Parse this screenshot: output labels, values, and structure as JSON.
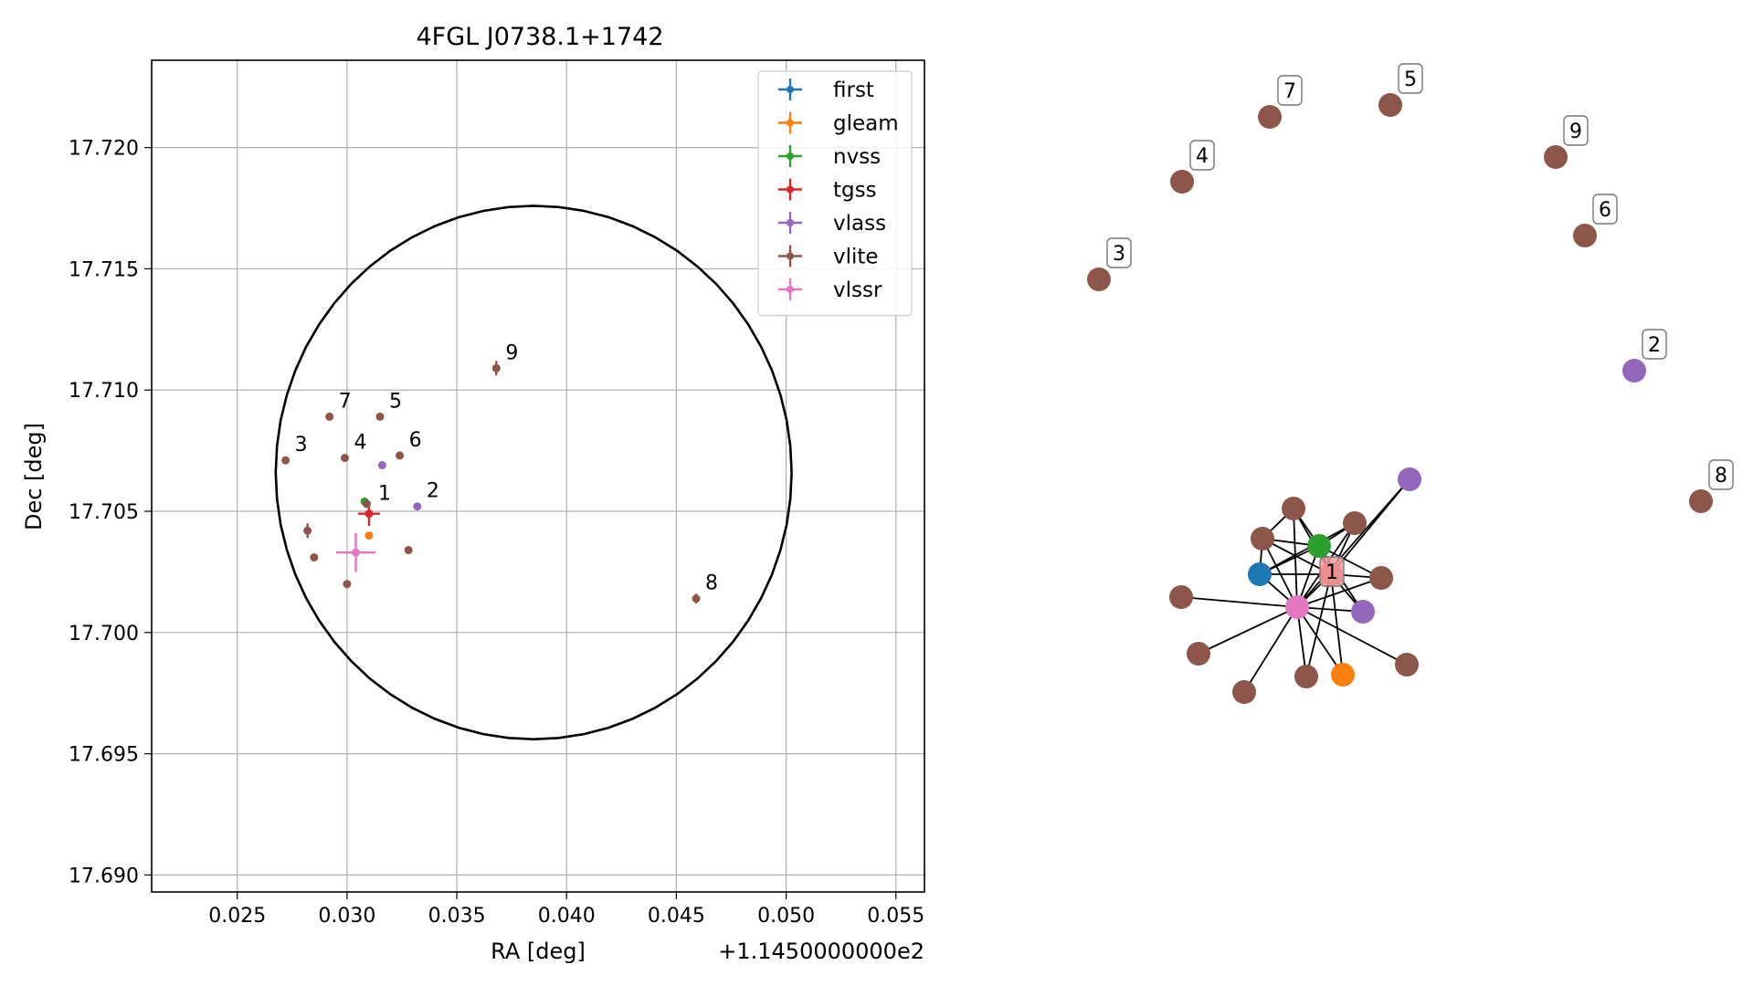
{
  "chart_data": [
    {
      "type": "scatter",
      "title": "4FGL J0738.1+1742",
      "xlabel": "RA [deg]",
      "ylabel": "Dec [deg]",
      "x_offset_label": "+1.1450000000e2",
      "xlim": [
        0.0211,
        0.0563
      ],
      "ylim": [
        17.6893,
        17.7236
      ],
      "x_ticks": [
        0.025,
        0.03,
        0.035,
        0.04,
        0.045,
        0.05,
        0.055
      ],
      "x_tick_labels": [
        "0.025",
        "0.030",
        "0.035",
        "0.040",
        "0.045",
        "0.050",
        "0.055"
      ],
      "y_ticks": [
        17.69,
        17.695,
        17.7,
        17.705,
        17.71,
        17.715,
        17.72
      ],
      "y_tick_labels": [
        "17.690",
        "17.695",
        "17.700",
        "17.705",
        "17.710",
        "17.715",
        "17.720"
      ],
      "grid": true,
      "legend_position": "top-right",
      "circle": {
        "center": [
          0.0385,
          17.7066
        ],
        "radius_x": 0.01175,
        "radius_y": 0.011,
        "color": "#000000"
      },
      "series": [
        {
          "name": "first",
          "color": "#1f77b4",
          "points": []
        },
        {
          "name": "gleam",
          "color": "#ff7f0e",
          "points": [
            {
              "x": 0.031,
              "y": 17.704
            }
          ]
        },
        {
          "name": "nvss",
          "color": "#2ca02c",
          "points": [
            {
              "x": 0.0308,
              "y": 17.7054
            }
          ]
        },
        {
          "name": "tgss",
          "color": "#d62728",
          "points": [
            {
              "x": 0.031,
              "y": 17.7049,
              "ex": 0.0005,
              "ey": 0.0005
            }
          ]
        },
        {
          "name": "vlass",
          "color": "#9467bd",
          "points": [
            {
              "x": 0.0316,
              "y": 17.7069
            },
            {
              "x": 0.0332,
              "y": 17.7052
            }
          ]
        },
        {
          "name": "vlite",
          "color": "#8c564b",
          "points": [
            {
              "x": 0.0272,
              "y": 17.7071
            },
            {
              "x": 0.0292,
              "y": 17.7089
            },
            {
              "x": 0.0315,
              "y": 17.7089
            },
            {
              "x": 0.0299,
              "y": 17.7072
            },
            {
              "x": 0.0324,
              "y": 17.7073
            },
            {
              "x": 0.0368,
              "y": 17.7109,
              "ey": 0.0003
            },
            {
              "x": 0.0459,
              "y": 17.7014,
              "ey": 0.0002
            },
            {
              "x": 0.0282,
              "y": 17.7042,
              "ey": 0.0003
            },
            {
              "x": 0.0285,
              "y": 17.7031
            },
            {
              "x": 0.0328,
              "y": 17.7034
            },
            {
              "x": 0.03,
              "y": 17.702
            },
            {
              "x": 0.0309,
              "y": 17.7053
            }
          ]
        },
        {
          "name": "vlssr",
          "color": "#e377c2",
          "points": [
            {
              "x": 0.0304,
              "y": 17.7033,
              "ex": 0.0009,
              "ey": 0.0008
            }
          ]
        }
      ],
      "annotations": [
        {
          "text": "1",
          "x": 0.031,
          "y": 17.7051
        },
        {
          "text": "2",
          "x": 0.0332,
          "y": 17.7052
        },
        {
          "text": "3",
          "x": 0.0272,
          "y": 17.7071
        },
        {
          "text": "4",
          "x": 0.0299,
          "y": 17.7072
        },
        {
          "text": "5",
          "x": 0.0315,
          "y": 17.7089
        },
        {
          "text": "6",
          "x": 0.0324,
          "y": 17.7073
        },
        {
          "text": "7",
          "x": 0.0292,
          "y": 17.7089
        },
        {
          "text": "8",
          "x": 0.0459,
          "y": 17.7014
        },
        {
          "text": "9",
          "x": 0.0368,
          "y": 17.7109
        }
      ]
    },
    {
      "type": "network",
      "nodes": [
        {
          "id": "a",
          "category": "vlite",
          "color": "#8c564b",
          "label": "7"
        },
        {
          "id": "b",
          "category": "vlite",
          "color": "#8c564b",
          "label": "5"
        },
        {
          "id": "c",
          "category": "vlite",
          "color": "#8c564b",
          "label": "4"
        },
        {
          "id": "d",
          "category": "vlite",
          "color": "#8c564b",
          "label": "9"
        },
        {
          "id": "e",
          "category": "vlite",
          "color": "#8c564b",
          "label": "6"
        },
        {
          "id": "f",
          "category": "vlite",
          "color": "#8c564b",
          "label": "3"
        },
        {
          "id": "g",
          "category": "vlass",
          "color": "#9467bd",
          "label": "2"
        },
        {
          "id": "h",
          "category": "vlite",
          "color": "#8c564b",
          "label": "8"
        },
        {
          "id": "p",
          "category": "vlssr",
          "color": "#e377c2",
          "label": ""
        },
        {
          "id": "t",
          "category": "tgss",
          "color": "#d62728",
          "label": "1"
        },
        {
          "id": "i",
          "category": "vlass",
          "color": "#9467bd",
          "label": ""
        },
        {
          "id": "j",
          "category": "vlite",
          "color": "#8c564b",
          "label": ""
        },
        {
          "id": "k",
          "category": "vlite",
          "color": "#8c564b",
          "label": ""
        },
        {
          "id": "l",
          "category": "nvss",
          "color": "#2ca02c",
          "label": ""
        },
        {
          "id": "m",
          "category": "vlite",
          "color": "#8c564b",
          "label": ""
        },
        {
          "id": "n",
          "category": "first",
          "color": "#1f77b4",
          "label": ""
        },
        {
          "id": "o",
          "category": "vlite",
          "color": "#8c564b",
          "label": ""
        },
        {
          "id": "q",
          "category": "vlass",
          "color": "#9467bd",
          "label": ""
        },
        {
          "id": "r",
          "category": "vlite",
          "color": "#8c564b",
          "label": ""
        },
        {
          "id": "s",
          "category": "vlite",
          "color": "#8c564b",
          "label": ""
        },
        {
          "id": "u",
          "category": "vlite",
          "color": "#8c564b",
          "label": ""
        },
        {
          "id": "v",
          "category": "vlite",
          "color": "#8c564b",
          "label": ""
        },
        {
          "id": "w",
          "category": "gleam",
          "color": "#ff7f0e",
          "label": ""
        },
        {
          "id": "x",
          "category": "vlite",
          "color": "#8c564b",
          "label": ""
        }
      ],
      "edges": [
        [
          "p",
          "i"
        ],
        [
          "p",
          "j"
        ],
        [
          "p",
          "k"
        ],
        [
          "p",
          "l"
        ],
        [
          "p",
          "m"
        ],
        [
          "p",
          "n"
        ],
        [
          "p",
          "o"
        ],
        [
          "p",
          "q"
        ],
        [
          "p",
          "r"
        ],
        [
          "p",
          "s"
        ],
        [
          "p",
          "u"
        ],
        [
          "p",
          "v"
        ],
        [
          "p",
          "w"
        ],
        [
          "p",
          "x"
        ],
        [
          "p",
          "t"
        ],
        [
          "t",
          "i"
        ],
        [
          "t",
          "j"
        ],
        [
          "t",
          "k"
        ],
        [
          "t",
          "l"
        ],
        [
          "t",
          "m"
        ],
        [
          "t",
          "n"
        ],
        [
          "t",
          "o"
        ],
        [
          "t",
          "q"
        ],
        [
          "t",
          "v"
        ],
        [
          "t",
          "w"
        ],
        [
          "l",
          "j"
        ],
        [
          "l",
          "k"
        ],
        [
          "l",
          "n"
        ],
        [
          "l",
          "q"
        ],
        [
          "l",
          "o"
        ],
        [
          "l",
          "m"
        ],
        [
          "n",
          "k"
        ],
        [
          "n",
          "m"
        ],
        [
          "k",
          "j"
        ]
      ]
    }
  ]
}
